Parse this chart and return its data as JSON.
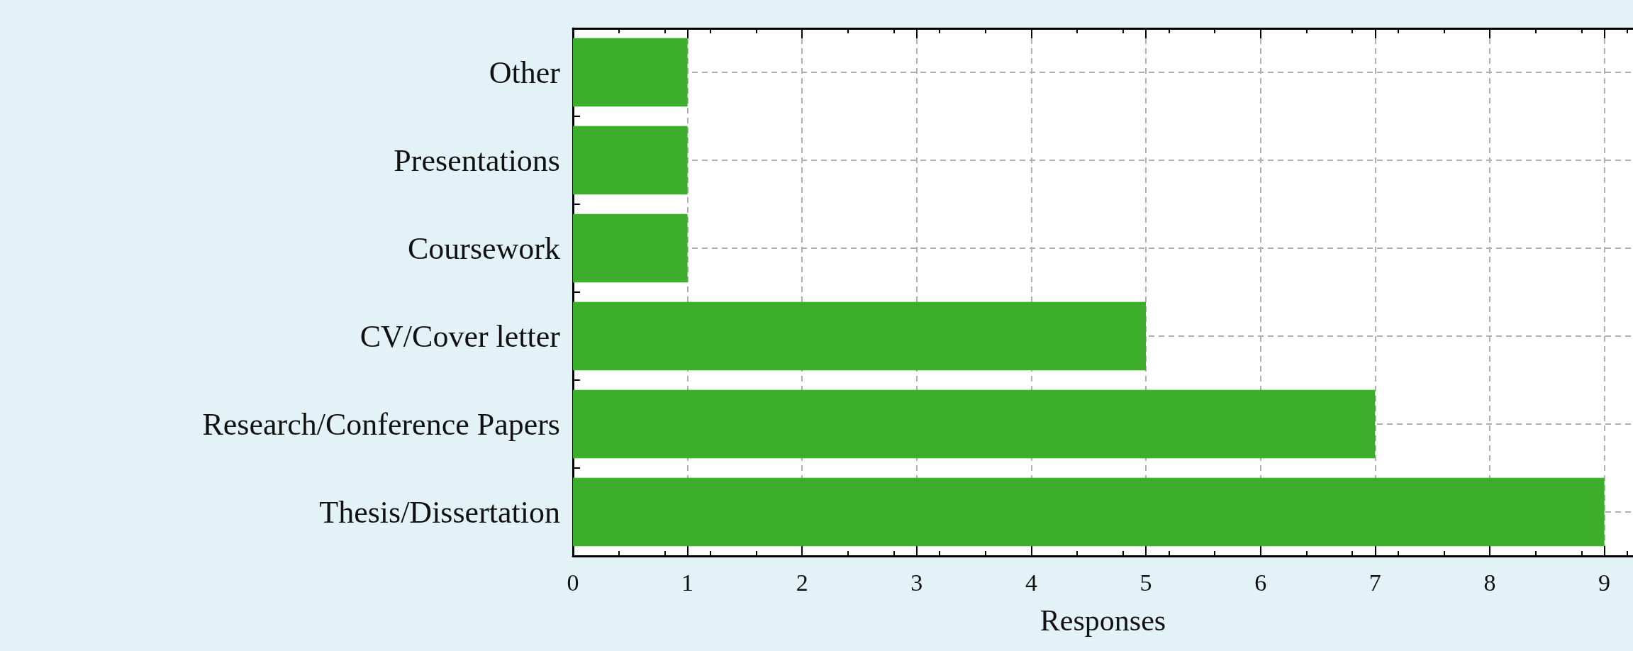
{
  "chart_data": {
    "type": "bar",
    "orientation": "horizontal",
    "xlabel": "Responses",
    "categories": [
      "Other",
      "Presentations",
      "Coursework",
      "CV/Cover letter",
      "Research/Conference Papers",
      "Thesis/Dissertation"
    ],
    "values": [
      1,
      1,
      1,
      5,
      7,
      9
    ],
    "color": "#3dae2b",
    "xlim": [
      0,
      9.25
    ],
    "xticks": [
      0,
      1,
      2,
      3,
      4,
      5,
      6,
      7,
      8,
      9
    ],
    "grid": true
  }
}
